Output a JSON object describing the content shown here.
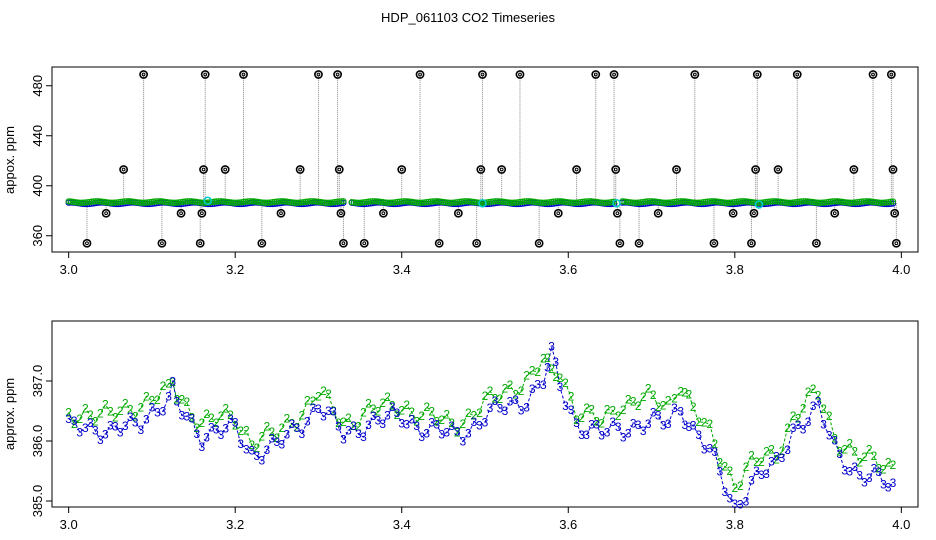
{
  "chart_data": {
    "title": "HDP_061103  CO2 Timeseries",
    "panels": [
      {
        "type": "scatter",
        "ylabel": "appox. ppm",
        "xlim": [
          2.98,
          4.02
        ],
        "ylim": [
          347,
          495
        ],
        "x_ticks": [
          "3.0",
          "3.2",
          "3.4",
          "3.6",
          "3.8",
          "4.0"
        ],
        "y_ticks": [
          "360",
          "400",
          "440",
          "480"
        ],
        "baseline_ppm": 386,
        "gaps_x": [
          [
            3.332,
            3.338
          ],
          [
            3.657,
            3.663
          ]
        ],
        "series": [
          {
            "color": "#0000cc",
            "description_marker": "o",
            "x_range": [
              3.0,
              3.99
            ],
            "value": 386
          },
          {
            "color": "#00aa00",
            "description_marker": "o",
            "x_range": [
              3.0,
              3.99
            ],
            "value": 387
          },
          {
            "color": "#00cccc",
            "description_marker": "o",
            "points": [
              [
                3.167,
                388
              ],
              [
                3.497,
                386
              ],
              [
                3.658,
                386
              ],
              [
                3.829,
                385
              ]
            ]
          },
          {
            "color": "#000000",
            "description_marker": "o",
            "points": [
              [
                3.022,
                354
              ],
              [
                3.045,
                378
              ],
              [
                3.066,
                413
              ],
              [
                3.09,
                489
              ],
              [
                3.112,
                354
              ],
              [
                3.135,
                378
              ],
              [
                3.158,
                354
              ],
              [
                3.16,
                378
              ],
              [
                3.162,
                413
              ],
              [
                3.164,
                489
              ],
              [
                3.188,
                413
              ],
              [
                3.21,
                489
              ],
              [
                3.232,
                354
              ],
              [
                3.255,
                378
              ],
              [
                3.278,
                413
              ],
              [
                3.3,
                489
              ],
              [
                3.323,
                489
              ],
              [
                3.325,
                413
              ],
              [
                3.327,
                378
              ],
              [
                3.33,
                354
              ],
              [
                3.355,
                354
              ],
              [
                3.378,
                378
              ],
              [
                3.4,
                413
              ],
              [
                3.422,
                489
              ],
              [
                3.445,
                354
              ],
              [
                3.468,
                378
              ],
              [
                3.49,
                354
              ],
              [
                3.495,
                413
              ],
              [
                3.497,
                489
              ],
              [
                3.52,
                413
              ],
              [
                3.542,
                489
              ],
              [
                3.565,
                354
              ],
              [
                3.588,
                378
              ],
              [
                3.61,
                413
              ],
              [
                3.633,
                489
              ],
              [
                3.655,
                489
              ],
              [
                3.657,
                413
              ],
              [
                3.659,
                378
              ],
              [
                3.662,
                354
              ],
              [
                3.685,
                354
              ],
              [
                3.708,
                378
              ],
              [
                3.73,
                413
              ],
              [
                3.752,
                489
              ],
              [
                3.775,
                354
              ],
              [
                3.798,
                378
              ],
              [
                3.82,
                354
              ],
              [
                3.823,
                378
              ],
              [
                3.825,
                413
              ],
              [
                3.827,
                489
              ],
              [
                3.852,
                413
              ],
              [
                3.875,
                489
              ],
              [
                3.898,
                354
              ],
              [
                3.92,
                378
              ],
              [
                3.943,
                413
              ],
              [
                3.966,
                489
              ],
              [
                3.988,
                489
              ],
              [
                3.99,
                413
              ],
              [
                3.992,
                378
              ],
              [
                3.994,
                354
              ]
            ]
          }
        ]
      },
      {
        "type": "line",
        "ylabel": "approx. ppm",
        "xlim": [
          2.98,
          4.02
        ],
        "ylim": [
          384.9,
          388.0
        ],
        "x_ticks": [
          "3.0",
          "3.2",
          "3.4",
          "3.6",
          "3.8",
          "4.0"
        ],
        "y_ticks": [
          "385.0",
          "386.0",
          "387.0"
        ],
        "series": [
          {
            "color": "#0000cc",
            "marker_label": "3",
            "x": [
              3.0,
              3.02,
              3.05,
              3.08,
              3.1,
              3.12,
              3.125,
              3.13,
              3.16,
              3.2,
              3.22,
              3.25,
              3.28,
              3.3,
              3.33,
              3.36,
              3.4,
              3.43,
              3.46,
              3.48,
              3.5,
              3.53,
              3.55,
              3.57,
              3.58,
              3.59,
              3.61,
              3.64,
              3.66,
              3.69,
              3.72,
              3.735,
              3.75,
              3.77,
              3.8,
              3.82,
              3.85,
              3.87,
              3.9,
              3.92,
              3.95,
              3.99
            ],
            "values": [
              386.2,
              386.3,
              386.1,
              386.3,
              386.5,
              386.6,
              386.8,
              386.6,
              386.1,
              386.2,
              385.8,
              385.9,
              386.3,
              386.6,
              386.1,
              386.3,
              386.4,
              386.2,
              386.1,
              386.2,
              386.4,
              386.6,
              386.7,
              387.0,
              387.4,
              386.9,
              386.3,
              386.1,
              386.2,
              386.3,
              386.3,
              386.6,
              386.2,
              385.8,
              384.9,
              385.3,
              385.6,
              386.2,
              386.5,
              385.9,
              385.4,
              385.3
            ]
          },
          {
            "color": "#00aa00",
            "marker_label": "2",
            "x": [
              3.0,
              3.02,
              3.05,
              3.08,
              3.1,
              3.12,
              3.125,
              3.13,
              3.16,
              3.2,
              3.22,
              3.25,
              3.28,
              3.3,
              3.33,
              3.36,
              3.4,
              3.43,
              3.46,
              3.48,
              3.5,
              3.53,
              3.55,
              3.57,
              3.58,
              3.59,
              3.61,
              3.64,
              3.66,
              3.69,
              3.72,
              3.735,
              3.75,
              3.77,
              3.8,
              3.82,
              3.85,
              3.87,
              3.9,
              3.92,
              3.95,
              3.99
            ],
            "values": [
              386.4,
              386.5,
              386.4,
              386.6,
              386.7,
              386.8,
              387.0,
              386.8,
              386.3,
              386.4,
              386.0,
              386.1,
              386.5,
              386.8,
              386.3,
              386.5,
              386.6,
              386.4,
              386.3,
              386.4,
              386.6,
              386.9,
              387.0,
              387.3,
              387.1,
              387.2,
              386.5,
              386.3,
              386.6,
              386.7,
              386.6,
              387.0,
              386.5,
              386.1,
              385.3,
              385.6,
              385.8,
              386.4,
              386.8,
              386.1,
              385.7,
              385.6
            ]
          }
        ]
      }
    ]
  }
}
